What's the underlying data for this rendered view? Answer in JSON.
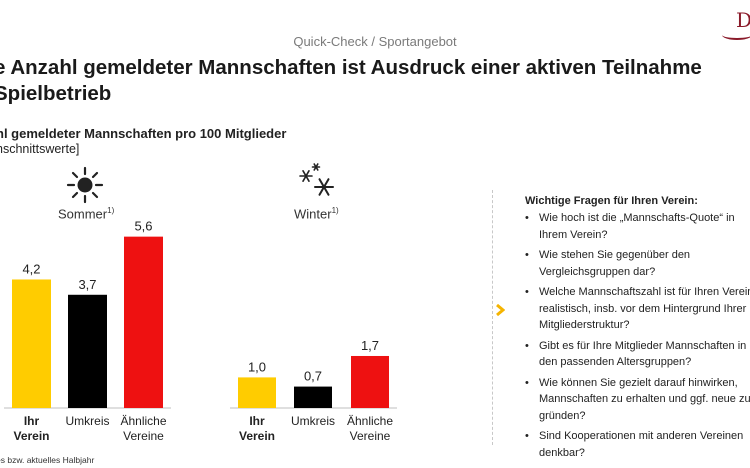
{
  "header": {
    "breadcrumb": "Quick-Check / Sportangebot",
    "logo_text": "D"
  },
  "title": {
    "line1": "e Anzahl gemeldeter Mannschaften ist Ausdruck einer aktiven Teilnahme",
    "line2": "Spielbetrieb"
  },
  "subtitle": "hl gemeldeter Mannschaften pro 100 Mitglieder",
  "subnote": "hschnittswerte]",
  "seasons": {
    "summer": {
      "label": "Sommer",
      "note": "1)",
      "icon": "sun-icon"
    },
    "winter": {
      "label": "Winter",
      "note": "1)",
      "icon": "snowflake-icon"
    }
  },
  "colors": {
    "ihr_verein": "#FFCC00",
    "umkreis": "#000000",
    "aehnliche": "#EE1111"
  },
  "chart_data": [
    {
      "type": "bar",
      "title": "Sommer",
      "categories": [
        "Ihr Verein",
        "Umkreis",
        "Ähnliche Vereine"
      ],
      "category_lines": [
        [
          "Ihr",
          "Verein"
        ],
        [
          "Umkreis"
        ],
        [
          "Ähnliche",
          "Vereine"
        ]
      ],
      "values": [
        4.2,
        3.7,
        5.6
      ],
      "value_labels": [
        "4,2",
        "3,7",
        "5,6"
      ],
      "ylim": [
        0,
        6.3
      ]
    },
    {
      "type": "bar",
      "title": "Winter",
      "categories": [
        "Ihr Verein",
        "Umkreis",
        "Ähnliche Vereine"
      ],
      "category_lines": [
        [
          "Ihr",
          "Verein"
        ],
        [
          "Umkreis"
        ],
        [
          "Ähnliche",
          "Vereine"
        ]
      ],
      "values": [
        1.0,
        0.7,
        1.7
      ],
      "value_labels": [
        "1,0",
        "0,7",
        "1,7"
      ],
      "ylim": [
        0,
        6.3
      ]
    }
  ],
  "questions": {
    "title": "Wichtige Fragen für Ihren Verein:",
    "items": [
      [
        "Wie hoch ist die „Mannschafts-Quote“ in",
        "Ihrem Verein?"
      ],
      [
        "Wie stehen Sie gegenüber den",
        "Vergleichsgruppen dar?"
      ],
      [
        "Welche Mannschaftszahl ist für Ihren Verein",
        "realistisch, insb. vor dem Hintergrund Ihrer",
        "Mitgliederstruktur?"
      ],
      [
        "Gibt es für Ihre Mitglieder Mannschaften in",
        "den passenden Altersgruppen?"
      ],
      [
        "Wie können Sie gezielt darauf hinwirken,",
        "Mannschaften zu erhalten und ggf. neue zu",
        "gründen?"
      ],
      [
        "Sind Kooperationen mit anderen Vereinen",
        "denkbar?"
      ]
    ]
  },
  "footnote": "es bzw. aktuelles Halbjahr"
}
